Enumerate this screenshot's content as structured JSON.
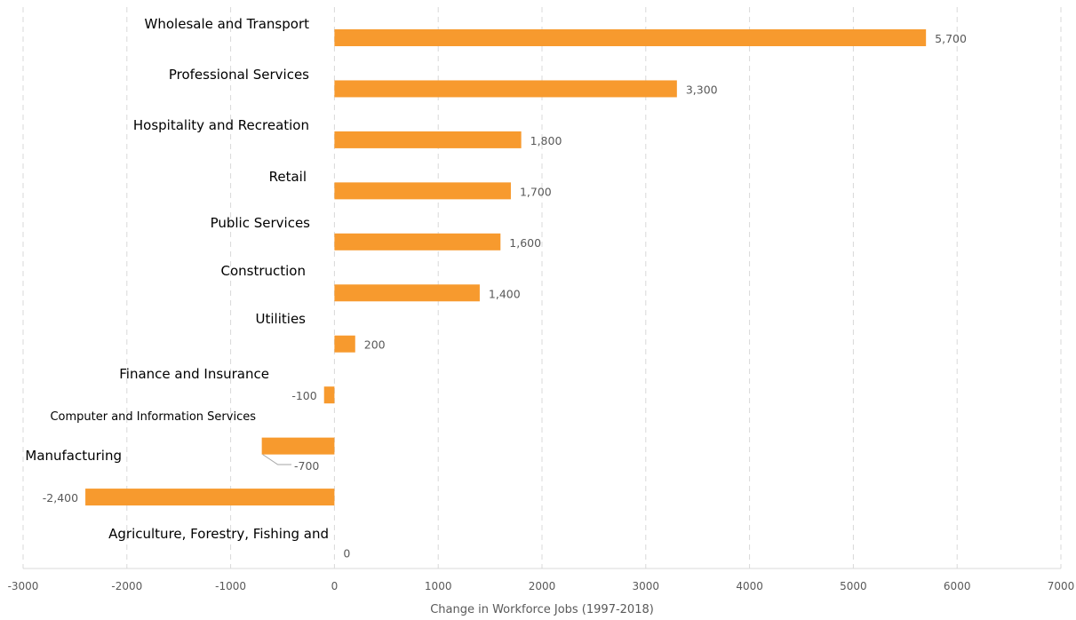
{
  "chart_data": {
    "type": "bar",
    "orientation": "horizontal",
    "xlabel": "Change in Workforce Jobs (1997-2018)",
    "xlim": [
      -3000,
      7000
    ],
    "xticks": [
      -3000,
      -2000,
      -1000,
      0,
      1000,
      2000,
      3000,
      4000,
      5000,
      6000,
      7000
    ],
    "grid": true,
    "bar_color": "#F79A2E",
    "categories": [
      "Wholesale and Transport",
      "Professional Services",
      "Hospitality and Recreation",
      "Retail",
      "Public Services",
      "Construction",
      "Utilities",
      "Finance and Insurance",
      "Computer and Information Services",
      "Manufacturing",
      "Agriculture, Forestry, Fishing and"
    ],
    "values": [
      5700,
      3300,
      1800,
      1700,
      1600,
      1400,
      200,
      -100,
      -700,
      -2400,
      0
    ],
    "value_labels": [
      "5,700",
      "3,300",
      "1,800",
      "1,700",
      "1,600",
      "1,400",
      "200",
      "-100",
      "-700",
      "-2,400",
      "0"
    ]
  }
}
